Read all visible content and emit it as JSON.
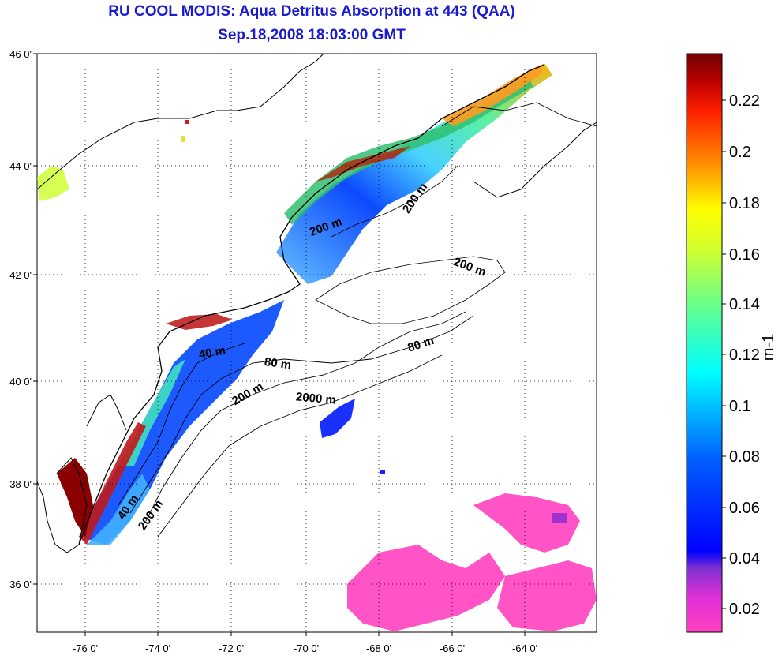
{
  "title": "RU COOL MODIS: Aqua Detritus Absorption at 443 (QAA)",
  "subtitle": "Sep.18,2008 18:03:00 GMT",
  "map": {
    "lat_ticks": [
      "46 0'",
      "44 0'",
      "42 0'",
      "40 0'",
      "38 0'",
      "36 0'"
    ],
    "lon_ticks": [
      "-76 0'",
      "-74 0'",
      "-72 0'",
      "-70 0'",
      "-68 0'",
      "-66 0'",
      "-64 0'"
    ],
    "isobath_labels": [
      "200 m",
      "200 m",
      "200 m",
      "80 m",
      "40 m",
      "80 m",
      "200 m",
      "2000 m",
      "40 m",
      "200 m"
    ],
    "grid": "dotted",
    "colors": {
      "land_outline": "#000000",
      "low": "#ff40c0",
      "high": "#7a0000"
    }
  },
  "colorbar": {
    "unit": "m-1",
    "ticks": [
      "0.22",
      "0.2",
      "0.18",
      "0.16",
      "0.14",
      "0.12",
      "0.1",
      "0.08",
      "0.06",
      "0.04",
      "0.02"
    ],
    "colors": [
      "#800000",
      "#ff0000",
      "#ff8000",
      "#ffff00",
      "#80ff80",
      "#00ffff",
      "#0080ff",
      "#0000ff",
      "#8030d0",
      "#ff40c0"
    ]
  }
}
